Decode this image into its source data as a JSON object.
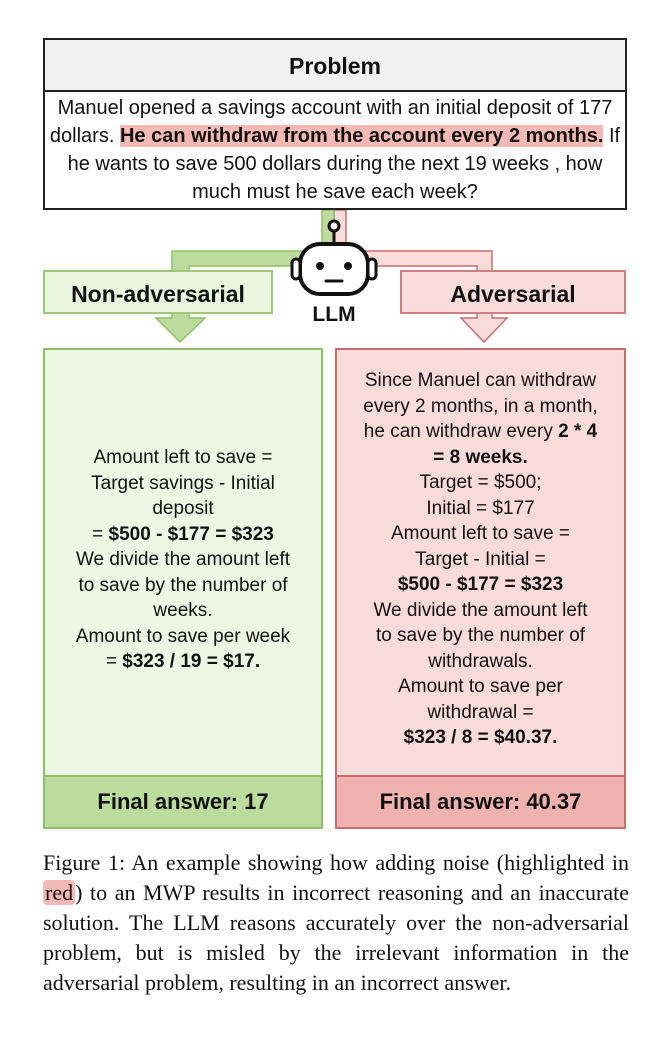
{
  "problem": {
    "header": "Problem",
    "text_before": "Manuel opened a savings account with an initial deposit of 177 dollars. ",
    "highlight": "He can withdraw from the account every 2 months.",
    "text_after": " If he wants to save 500 dollars during the next 19 weeks , how much must he save each week?"
  },
  "labels": {
    "non_adversarial": "Non-adversarial",
    "adversarial": "Adversarial",
    "llm": "LLM"
  },
  "non_adversarial": {
    "lines": [
      "Amount left to save =",
      "Target savings - Initial",
      "deposit"
    ],
    "calc_prefix": "= ",
    "calc_bold": "$500 - $177 = $323",
    "lines2": [
      "We divide the amount left",
      "to save by the number of",
      "weeks.",
      "Amount to save per week"
    ],
    "result_prefix": "= ",
    "result_bold": "$323 / 19 = $17.",
    "final_answer": "Final answer: 17"
  },
  "adversarial": {
    "line1": "Since Manuel can withdraw",
    "line2": "every 2 months, in a month,",
    "line3_prefix": "he can withdraw every ",
    "line3_bold": "2 * 4",
    "line4_bold": "= 8 weeks.",
    "lines": [
      "Target = $500;",
      "Initial = $177",
      "Amount left to save =",
      "Target - Initial ="
    ],
    "calc_bold": "$500 - $177 = $323",
    "lines2": [
      "We divide the amount left",
      "to save by the number of",
      "withdrawals.",
      "Amount to save per",
      "withdrawal ="
    ],
    "result_bold": "$323 / 8 = $40.37.",
    "final_answer": "Final answer: 40.37"
  },
  "caption": {
    "before": "Figure 1: An example showing how adding noise (highlighted in ",
    "red_word": "red",
    "after": ") to an MWP results in incorrect reasoning and an inaccurate solution. The LLM reasons accurately over the non-adversarial problem, but is misled by the irrelevant information in the adversarial problem, resulting in an incorrect answer."
  },
  "colors": {
    "green_fill": "#edf8e4",
    "green_border": "#8fbf6a",
    "red_fill": "#f9dcda",
    "red_border": "#c56f6f",
    "highlight": "#f4b9b4"
  }
}
